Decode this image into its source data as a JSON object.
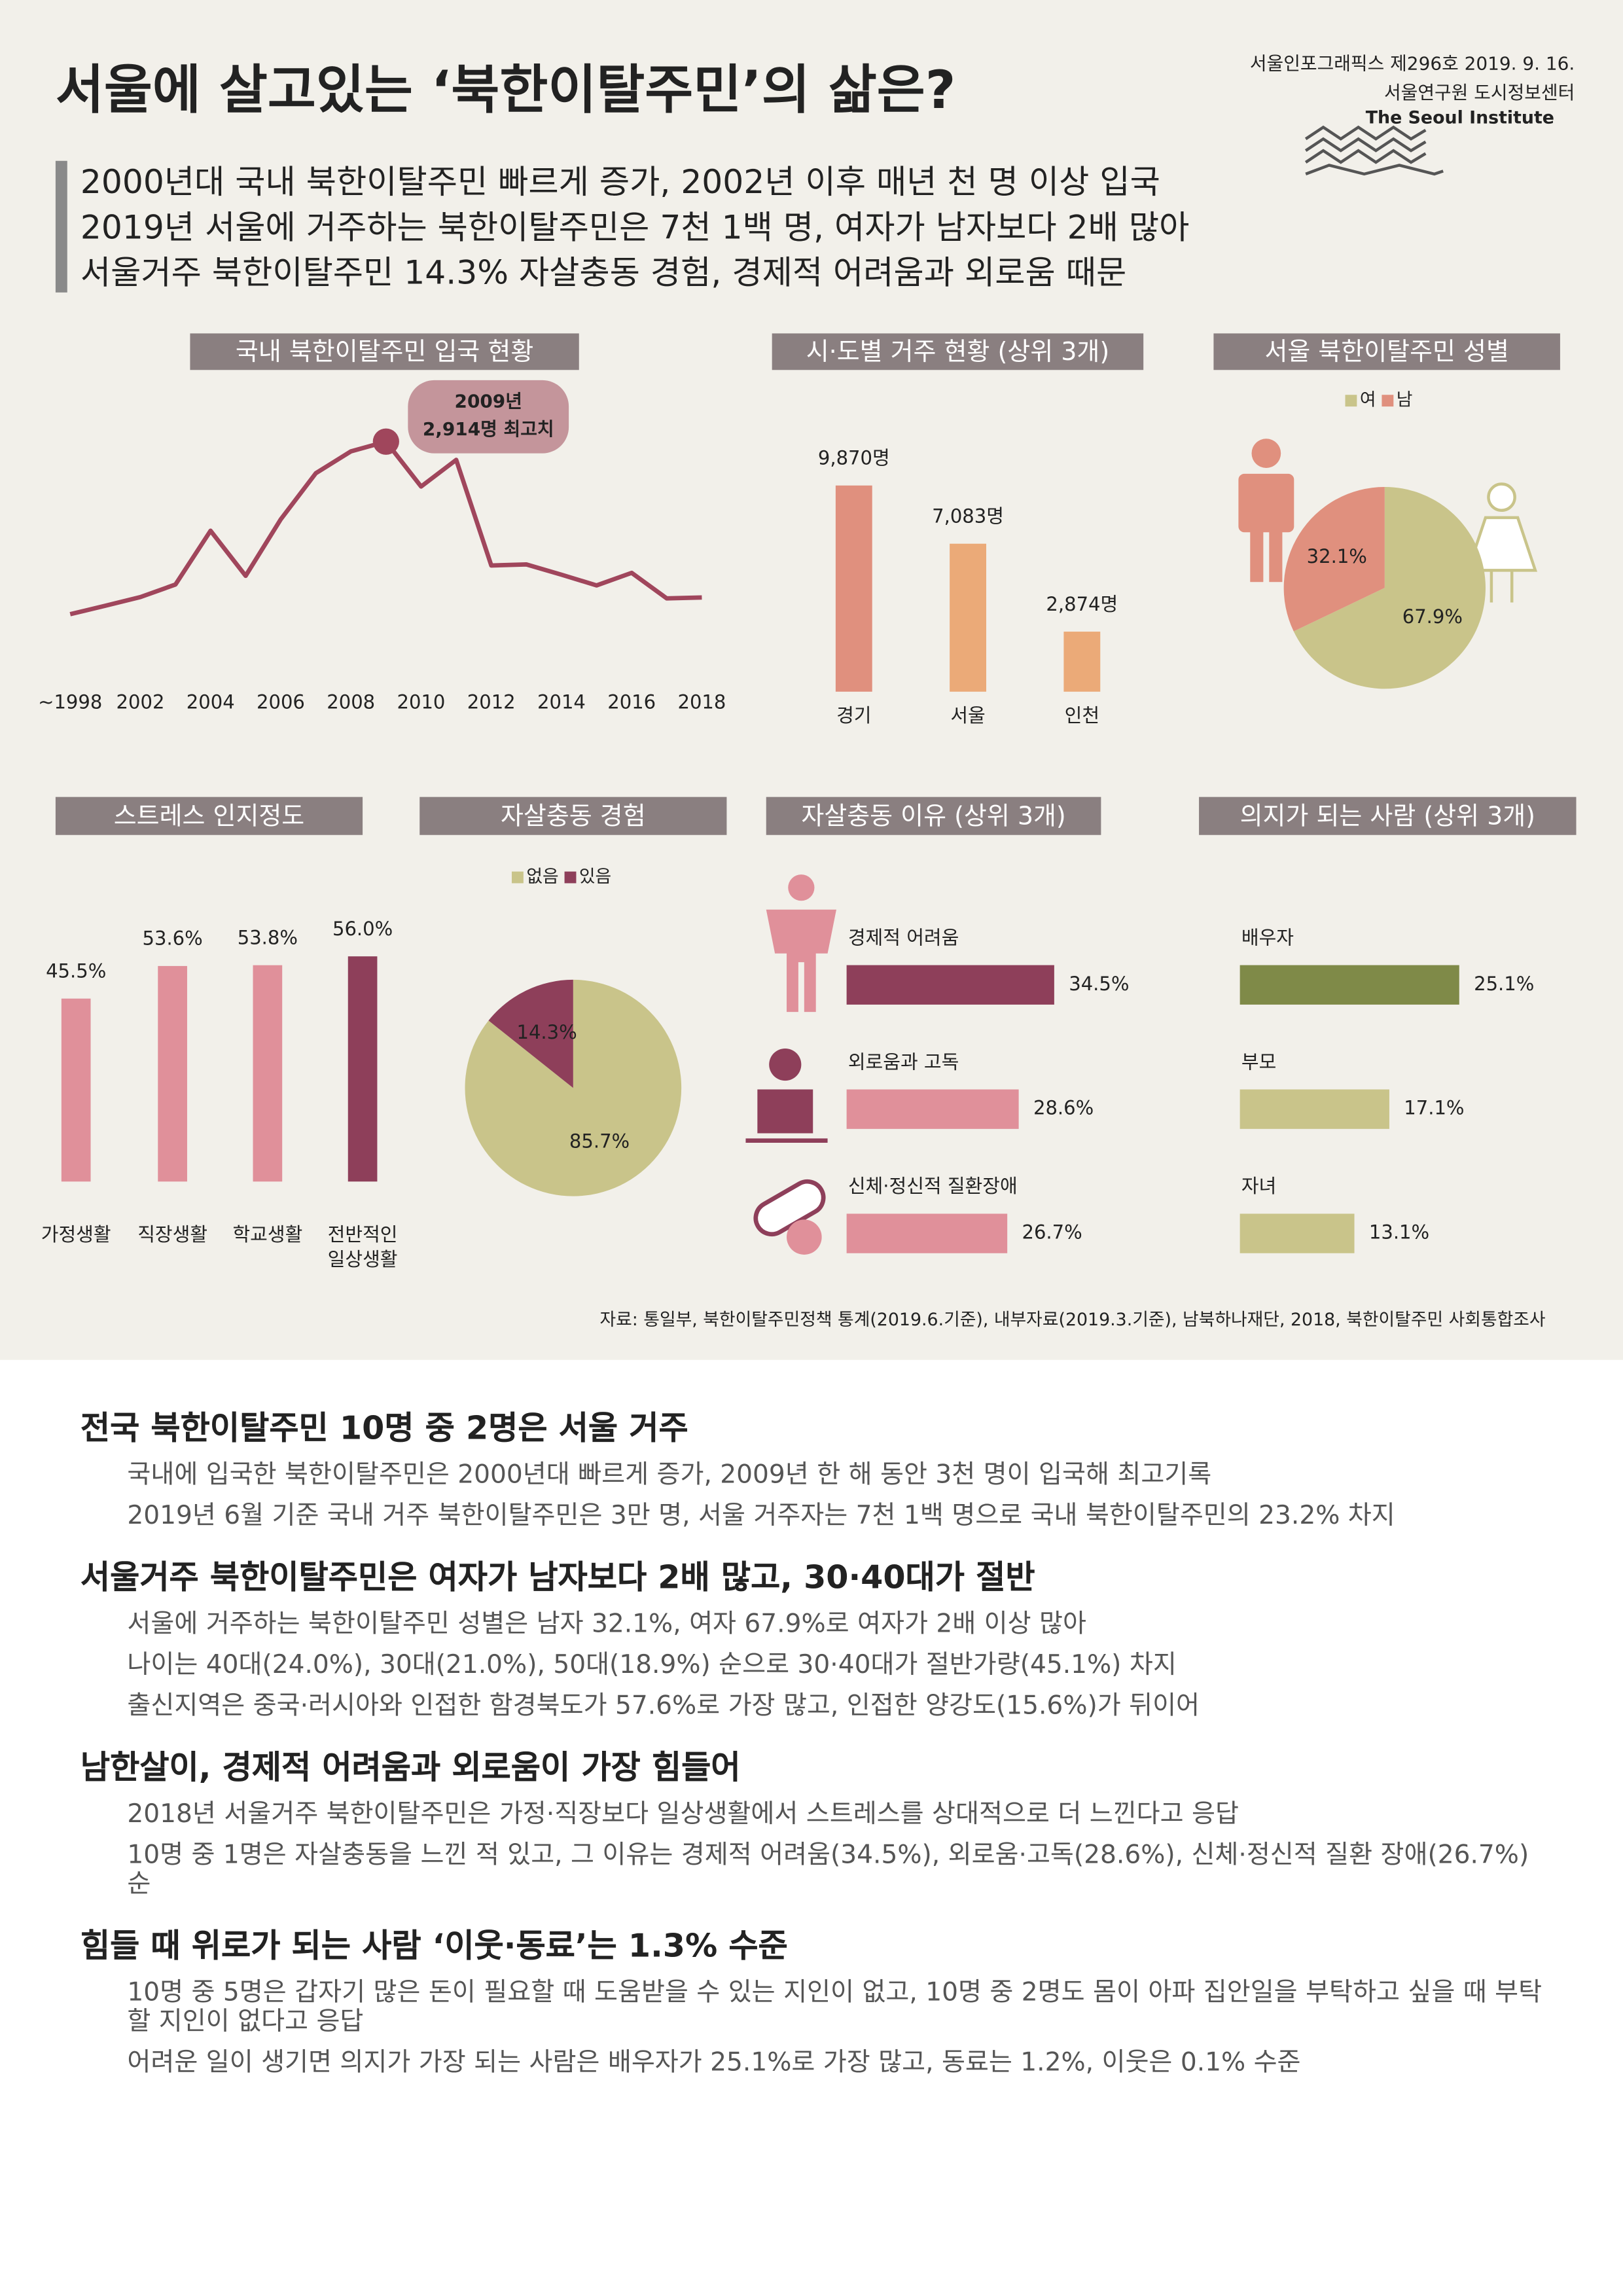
{
  "header": {
    "title": "서울에 살고있는 ‘북한이탈주민’의 삶은?",
    "issue": "서울인포그래픽스 제296호 2019. 9. 16.",
    "org": "서울연구원 도시정보센터",
    "org_en": "The Seoul Institute",
    "summary": [
      "2000년대 국내 북한이탈주민 빠르게 증가, 2002년 이후 매년 천 명 이상 입국",
      "2019년 서울에 거주하는 북한이탈주민은 7천 1백 명, 여자가 남자보다 2배 많아",
      "서울거주 북한이탈주민 14.3% 자살충동 경험, 경제적 어려움과 외로움 때문"
    ]
  },
  "chart_data": [
    {
      "type": "line",
      "title": "국내 북한이탈주민 입국 현황",
      "categories": [
        "~1998",
        null,
        "2002",
        null,
        "2004",
        null,
        "2006",
        null,
        "2008",
        null,
        "2010",
        null,
        "2012",
        null,
        "2014",
        null,
        "2016",
        null,
        "2018"
      ],
      "values": [
        947,
        1043,
        1142,
        1285,
        1898,
        1384,
        2028,
        2554,
        2803,
        2914,
        2402,
        2706,
        1502,
        1514,
        1397,
        1275,
        1418,
        1127,
        1137
      ],
      "color": "#a0465c",
      "annotation": [
        "2009년",
        "2,914명 최고치"
      ]
    },
    {
      "type": "bar",
      "title": "시·도별 거주 현황 (상위 3개)",
      "categories": [
        "경기",
        "서울",
        "인천"
      ],
      "values": [
        9870,
        7083,
        2874
      ],
      "value_labels": [
        "9,870명",
        "7,083명",
        "2,874명"
      ],
      "colors": [
        "#e0907e",
        "#ebaa78",
        "#ebaa78"
      ]
    },
    {
      "type": "pie",
      "title": "서울 북한이탈주민 성별",
      "categories": [
        "여",
        "남"
      ],
      "values": [
        67.9,
        32.1
      ],
      "value_labels": [
        "67.9%",
        "32.1%"
      ],
      "colors": [
        "#c9c48a",
        "#e0907e"
      ]
    },
    {
      "type": "bar",
      "title": "스트레스 인지정도",
      "categories": [
        "가정생활",
        "직장생활",
        "학교생활",
        "전반적인 일상생활"
      ],
      "values": [
        45.5,
        53.6,
        53.8,
        56.0
      ],
      "value_labels": [
        "45.5%",
        "53.6%",
        "53.8%",
        "56.0%"
      ],
      "colors": [
        "#e0909a",
        "#e0909a",
        "#e0909a",
        "#8e3f5a"
      ]
    },
    {
      "type": "pie",
      "title": "자살충동 경험",
      "categories": [
        "없음",
        "있음"
      ],
      "values": [
        85.7,
        14.3
      ],
      "value_labels": [
        "85.7%",
        "14.3%"
      ],
      "colors": [
        "#c9c48a",
        "#8e3f5a"
      ]
    },
    {
      "type": "hbar",
      "title": "자살충동 이유 (상위 3개)",
      "categories": [
        "경제적 어려움",
        "외로움과 고독",
        "신체·정신적 질환장애"
      ],
      "values": [
        34.5,
        28.6,
        26.7
      ],
      "value_labels": [
        "34.5%",
        "28.6%",
        "26.7%"
      ],
      "colors": [
        "#8e3f5a",
        "#e0909a",
        "#e0909a"
      ]
    },
    {
      "type": "hbar",
      "title": "의지가 되는 사람 (상위 3개)",
      "categories": [
        "배우자",
        "부모",
        "자녀"
      ],
      "values": [
        25.1,
        17.1,
        13.1
      ],
      "value_labels": [
        "25.1%",
        "17.1%",
        "13.1%"
      ],
      "colors": [
        "#7f8a48",
        "#c9c48a",
        "#c9c48a"
      ]
    }
  ],
  "source": "자료: 통일부, 북한이탈주민정책 통계(2019.6.기준), 내부자료(2019.3.기준), 남북하나재단, 2018, 북한이탈주민 사회통합조사",
  "sections": [
    {
      "heading": "전국 북한이탈주민 10명 중 2명은 서울 거주",
      "paragraphs": [
        "국내에 입국한 북한이탈주민은 2000년대 빠르게 증가, 2009년 한 해 동안 3천 명이 입국해 최고기록",
        "2019년 6월 기준 국내 거주 북한이탈주민은 3만 명, 서울 거주자는 7천 1백 명으로 국내 북한이탈주민의 23.2% 차지"
      ]
    },
    {
      "heading": "서울거주 북한이탈주민은 여자가 남자보다 2배 많고, 30·40대가 절반",
      "paragraphs": [
        "서울에 거주하는 북한이탈주민 성별은 남자 32.1%, 여자 67.9%로 여자가 2배 이상 많아",
        "나이는 40대(24.0%), 30대(21.0%), 50대(18.9%) 순으로 30·40대가 절반가량(45.1%) 차지",
        "출신지역은 중국·러시아와 인접한 함경북도가 57.6%로 가장 많고, 인접한 양강도(15.6%)가 뒤이어"
      ]
    },
    {
      "heading": "남한살이, 경제적 어려움과 외로움이 가장 힘들어",
      "paragraphs": [
        "2018년 서울거주 북한이탈주민은 가정·직장보다 일상생활에서 스트레스를 상대적으로 더 느낀다고 응답",
        "10명 중 1명은 자살충동을 느낀 적 있고, 그 이유는 경제적 어려움(34.5%), 외로움·고독(28.6%), 신체·정신적 질환 장애(26.7%) 순"
      ]
    },
    {
      "heading": "힘들 때 위로가 되는 사람 ‘이웃·동료’는 1.3% 수준",
      "paragraphs": [
        "10명 중 5명은 갑자기 많은 돈이 필요할 때 도움받을 수 있는 지인이 없고, 10명 중 2명도 몸이 아파 집안일을 부탁하고 싶을 때 부탁할 지인이 없다고 응답",
        "어려운 일이 생기면 의지가 가장 되는 사람은 배우자가 25.1%로 가장 많고, 동료는 1.2%, 이웃은 0.1% 수준"
      ]
    }
  ]
}
